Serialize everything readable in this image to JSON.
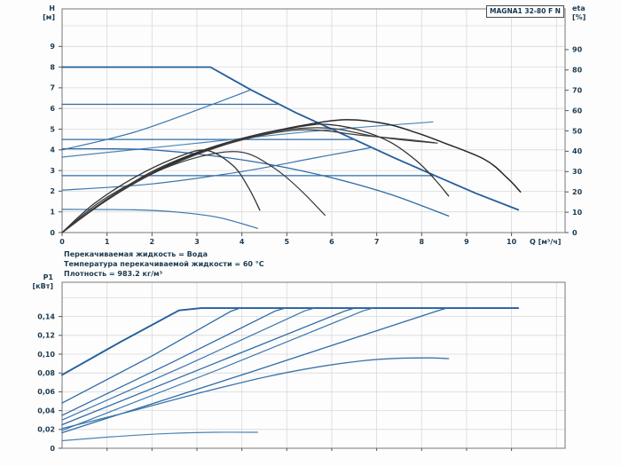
{
  "title_box": "MAGNA1 32-80 F N",
  "notes": [
    "Перекачиваемая жидкость = Вода",
    "Температура перекачиваемой жидкости = 60 °C",
    "Плотность = 983.2 кг/м³"
  ],
  "colors": {
    "curve_blue": "#2e6ba8",
    "curve_blue_dark": "#245e9c",
    "curve_blue_light": "#4b84b6",
    "curve_black": "#2b2b2b",
    "grid": "#d9d9d9",
    "frame": "#8e8e8e",
    "text": "#1b3a50"
  },
  "chart_data": [
    {
      "id": "qh-efficiency-chart",
      "type": "line",
      "title": "MAGNA1 32-80 F N",
      "xlabel": "Q [м³/ч]",
      "x_range": [
        0,
        11.18
      ],
      "x_ticks": [
        "0",
        "1",
        "2",
        "3",
        "4",
        "5",
        "6",
        "7",
        "8",
        "9",
        "10"
      ],
      "y_axis": {
        "title_line1": "H",
        "title_line2": "[м]",
        "range": [
          0,
          10.82
        ],
        "ticks": [
          "0",
          "1",
          "2",
          "3",
          "4",
          "5",
          "6",
          "7",
          "8",
          "9"
        ]
      },
      "y2_axis": {
        "title_line1": "eta",
        "title_line2": "[%]",
        "range": [
          0,
          110
        ],
        "ticks": [
          "0",
          "10",
          "20",
          "30",
          "40",
          "50",
          "60",
          "70",
          "80",
          "90"
        ]
      },
      "grid": true,
      "legend": "none",
      "series": [
        {
          "name": "qh-max-speed-III",
          "axis": "H",
          "color": "#245e9c",
          "width": 1.8,
          "smooth": false,
          "points": [
            [
              0,
              8
            ],
            [
              3.3,
              8
            ],
            [
              4.2,
              6.9
            ],
            [
              5.2,
              5.8
            ],
            [
              6.5,
              4.5
            ],
            [
              7.4,
              3.6
            ],
            [
              8.3,
              2.75
            ],
            [
              9.2,
              1.9
            ],
            [
              10.15,
              1.1
            ]
          ]
        },
        {
          "name": "qh-const-pressure-3",
          "axis": "H",
          "color": "#2e6ba8",
          "width": 1.3,
          "smooth": false,
          "points": [
            [
              0,
              6.2
            ],
            [
              4.83,
              6.2
            ]
          ]
        },
        {
          "name": "qh-const-pressure-2",
          "axis": "H",
          "color": "#2e6ba8",
          "width": 1.3,
          "smooth": false,
          "points": [
            [
              0,
              4.5
            ],
            [
              6.5,
              4.5
            ]
          ]
        },
        {
          "name": "qh-const-pressure-1",
          "axis": "H",
          "color": "#2e6ba8",
          "width": 1.3,
          "smooth": false,
          "points": [
            [
              0,
              2.75
            ],
            [
              8.3,
              2.75
            ]
          ]
        },
        {
          "name": "qh-prop-pressure-3",
          "axis": "H",
          "color": "#3a76ae",
          "width": 1.2,
          "smooth": true,
          "points": [
            [
              0,
              4.0
            ],
            [
              1.6,
              4.85
            ],
            [
              3.1,
              6.0
            ],
            [
              4.2,
              6.9
            ]
          ]
        },
        {
          "name": "qh-prop-pressure-2",
          "axis": "H",
          "color": "#3a76ae",
          "width": 1.2,
          "smooth": true,
          "points": [
            [
              0,
              2.05
            ],
            [
              2,
              2.35
            ],
            [
              4,
              2.95
            ],
            [
              5.6,
              3.6
            ],
            [
              6.9,
              4.12
            ]
          ]
        },
        {
          "name": "qh-setting-riser",
          "axis": "H",
          "color": "#4b84b6",
          "width": 1.2,
          "smooth": true,
          "points": [
            [
              0,
              3.65
            ],
            [
              3,
              4.32
            ],
            [
              5.6,
              4.9
            ],
            [
              8.25,
              5.35
            ]
          ]
        },
        {
          "name": "qh-speed-II",
          "axis": "H",
          "color": "#2e6ba8",
          "width": 1.3,
          "smooth": true,
          "points": [
            [
              0,
              4.05
            ],
            [
              1.8,
              4.02
            ],
            [
              3.2,
              3.75
            ],
            [
              4.6,
              3.3
            ],
            [
              6,
              2.65
            ],
            [
              7.3,
              1.85
            ],
            [
              8.6,
              0.8
            ]
          ]
        },
        {
          "name": "qh-speed-I",
          "axis": "H",
          "color": "#3a76ae",
          "width": 1.2,
          "smooth": true,
          "points": [
            [
              0,
              1.12
            ],
            [
              1.6,
              1.1
            ],
            [
              2.6,
              0.98
            ],
            [
              3.5,
              0.72
            ],
            [
              4.35,
              0.2
            ]
          ]
        },
        {
          "name": "eta-max",
          "axis": "eta",
          "color": "#262626",
          "width": 1.5,
          "smooth": true,
          "points": [
            [
              0,
              0
            ],
            [
              0.8,
              13
            ],
            [
              1.8,
              27
            ],
            [
              3,
              39
            ],
            [
              4.2,
              47
            ],
            [
              5.3,
              52.5
            ],
            [
              6.3,
              55.5
            ],
            [
              7.2,
              53.5
            ],
            [
              7.9,
              49
            ],
            [
              8.45,
              44.5
            ],
            [
              9.4,
              36
            ],
            [
              9.9,
              27
            ],
            [
              10.2,
              20
            ]
          ]
        },
        {
          "name": "eta-speed-II",
          "axis": "eta",
          "color": "#333333",
          "width": 1.3,
          "smooth": true,
          "points": [
            [
              0,
              0
            ],
            [
              0.9,
              15
            ],
            [
              2,
              30
            ],
            [
              3.2,
              41
            ],
            [
              4.4,
              48.5
            ],
            [
              5.4,
              52.5
            ],
            [
              5.9,
              53.2
            ],
            [
              6.6,
              50.5
            ],
            [
              7.3,
              44.5
            ],
            [
              7.9,
              35
            ],
            [
              8.3,
              26
            ],
            [
              8.6,
              18
            ]
          ]
        },
        {
          "name": "eta-setting-a",
          "axis": "eta",
          "color": "#3a3a3a",
          "width": 1.2,
          "smooth": true,
          "points": [
            [
              0,
              0
            ],
            [
              1,
              16
            ],
            [
              2.2,
              31
            ],
            [
              3.5,
              42.5
            ],
            [
              4.7,
              49.5
            ],
            [
              5.5,
              51.5
            ],
            [
              6.1,
              51
            ],
            [
              6.9,
              47.5
            ],
            [
              7.6,
              45.5
            ],
            [
              8.35,
              44
            ]
          ]
        },
        {
          "name": "eta-setting-b",
          "axis": "eta",
          "color": "#404040",
          "width": 1.2,
          "smooth": true,
          "points": [
            [
              0,
              0
            ],
            [
              1.1,
              18
            ],
            [
              2.4,
              33
            ],
            [
              3.6,
              43
            ],
            [
              4.6,
              48.5
            ],
            [
              5.3,
              50.5
            ],
            [
              5.9,
              50
            ],
            [
              6.6,
              48
            ],
            [
              7.8,
              45.5
            ],
            [
              8.3,
              44.2
            ]
          ]
        },
        {
          "name": "eta-speed-I",
          "axis": "eta",
          "color": "#333333",
          "width": 1.3,
          "smooth": true,
          "points": [
            [
              0,
              0
            ],
            [
              0.7,
              14
            ],
            [
              1.6,
              27
            ],
            [
              2.5,
              36.5
            ],
            [
              3.2,
              40.5
            ],
            [
              3.8,
              33
            ],
            [
              4.15,
              22
            ],
            [
              4.4,
              11
            ]
          ]
        },
        {
          "name": "eta-setting-c",
          "axis": "eta",
          "color": "#3a3a3a",
          "width": 1.2,
          "smooth": true,
          "points": [
            [
              0,
              0
            ],
            [
              0.9,
              16
            ],
            [
              2,
              29
            ],
            [
              3.1,
              37.5
            ],
            [
              4,
              39.5
            ],
            [
              4.7,
              32
            ],
            [
              5.3,
              21
            ],
            [
              5.85,
              8.5
            ]
          ]
        }
      ]
    },
    {
      "id": "power-chart",
      "type": "line",
      "title": "",
      "xlabel": "",
      "x_range": [
        0,
        11.18
      ],
      "x_ticks": [],
      "y_axis": {
        "title_line1": "P1",
        "title_line2": "[кВт]",
        "range": [
          0,
          0.1764
        ],
        "ticks": [
          "0",
          "0,02",
          "0,04",
          "0,06",
          "0,08",
          "0,10",
          "0,12",
          "0,14"
        ]
      },
      "grid": true,
      "legend": "none",
      "series": [
        {
          "name": "p1-max-speed-III",
          "axis": "P1",
          "color": "#245e9c",
          "width": 1.9,
          "smooth": false,
          "points": [
            [
              0,
              0.078
            ],
            [
              1.3,
              0.113
            ],
            [
              2.6,
              0.1465
            ],
            [
              3.1,
              0.149
            ],
            [
              10.15,
              0.149
            ]
          ]
        },
        {
          "name": "p1-prop-pressure-3",
          "axis": "P1",
          "color": "#2e6ba8",
          "width": 1.3,
          "smooth": false,
          "points": [
            [
              0,
              0.048
            ],
            [
              2,
              0.098
            ],
            [
              3.75,
              0.1455
            ],
            [
              3.95,
              0.1488
            ]
          ]
        },
        {
          "name": "p1-const-pressure-3",
          "axis": "P1",
          "color": "#2e6ba8",
          "width": 1.3,
          "smooth": false,
          "points": [
            [
              0,
              0.035
            ],
            [
              2.5,
              0.0925
            ],
            [
              4.75,
              0.146
            ],
            [
              4.95,
              0.1488
            ]
          ]
        },
        {
          "name": "p1-setting-riser",
          "axis": "P1",
          "color": "#3a76ae",
          "width": 1.2,
          "smooth": false,
          "points": [
            [
              0,
              0.03
            ],
            [
              2.8,
              0.089
            ],
            [
              5.4,
              0.146
            ],
            [
              5.6,
              0.1488
            ]
          ]
        },
        {
          "name": "p1-const-pressure-2",
          "axis": "P1",
          "color": "#2e6ba8",
          "width": 1.3,
          "smooth": false,
          "points": [
            [
              0,
              0.025
            ],
            [
              3.2,
              0.0865
            ],
            [
              6.3,
              0.146
            ],
            [
              6.5,
              0.1488
            ]
          ]
        },
        {
          "name": "p1-prop-pressure-2",
          "axis": "P1",
          "color": "#3a76ae",
          "width": 1.2,
          "smooth": false,
          "points": [
            [
              0,
              0.019
            ],
            [
              3.5,
              0.084
            ],
            [
              6.7,
              0.146
            ],
            [
              6.9,
              0.1488
            ]
          ]
        },
        {
          "name": "p1-const-pressure-1",
          "axis": "P1",
          "color": "#2e6ba8",
          "width": 1.3,
          "smooth": false,
          "points": [
            [
              0,
              0.0165
            ],
            [
              4.2,
              0.081
            ],
            [
              8.35,
              0.146
            ],
            [
              8.55,
              0.1488
            ]
          ]
        },
        {
          "name": "p1-speed-II",
          "axis": "P1",
          "color": "#3a76ae",
          "width": 1.3,
          "smooth": true,
          "points": [
            [
              0,
              0.021
            ],
            [
              1.5,
              0.039
            ],
            [
              3,
              0.058
            ],
            [
              4.5,
              0.0755
            ],
            [
              5.7,
              0.0865
            ],
            [
              6.7,
              0.093
            ],
            [
              7.4,
              0.0955
            ],
            [
              8.2,
              0.096
            ],
            [
              8.6,
              0.0953
            ]
          ]
        },
        {
          "name": "p1-speed-I",
          "axis": "P1",
          "color": "#4b84b6",
          "width": 1.2,
          "smooth": true,
          "points": [
            [
              0,
              0.008
            ],
            [
              1.2,
              0.0125
            ],
            [
              2.4,
              0.0158
            ],
            [
              3.4,
              0.017
            ],
            [
              4.35,
              0.017
            ]
          ]
        }
      ]
    }
  ]
}
